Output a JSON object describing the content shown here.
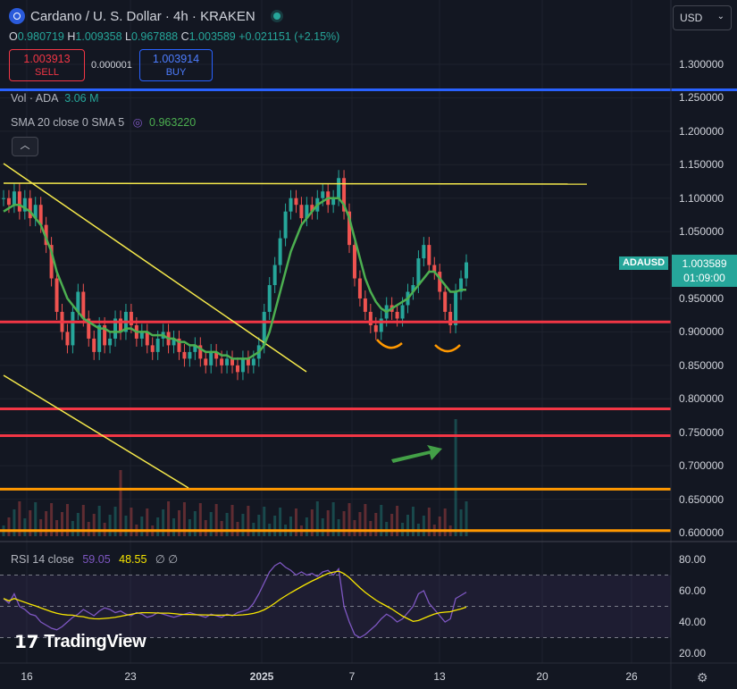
{
  "header": {
    "title": "Cardano / U. S. Dollar · 4h · KRAKEN",
    "ohlc": {
      "o_label": "O",
      "o": "0.980719",
      "h_label": "H",
      "h": "1.009358",
      "l_label": "L",
      "l": "0.967888",
      "c_label": "C",
      "c": "1.003589",
      "change": "+0.021151 (+2.15%)"
    },
    "sell_price": "1.003913",
    "sell_label": "SELL",
    "spread": "0.000001",
    "buy_price": "1.003914",
    "buy_label": "BUY",
    "currency": "USD"
  },
  "indicators": {
    "vol_label": "Vol · ADA",
    "vol_value": "3.06 M",
    "sma_label": "SMA 20 close 0 SMA 5",
    "sma_value": "0.963220",
    "rsi_label": "RSI 14 close",
    "rsi_value": "59.05",
    "rsi_ma": "48.55",
    "rsi_extra": "∅ ∅"
  },
  "price_axis": [
    "1.300000",
    "1.250000",
    "1.200000",
    "1.150000",
    "1.100000",
    "1.050000",
    "1.000000",
    "0.950000",
    "0.900000",
    "0.850000",
    "0.800000",
    "0.750000",
    "0.700000",
    "0.650000",
    "0.600000"
  ],
  "rsi_axis": [
    "80.00",
    "60.00",
    "40.00",
    "20.00"
  ],
  "time_axis": [
    {
      "label": "16",
      "bold": false
    },
    {
      "label": "23",
      "bold": false
    },
    {
      "label": "2025",
      "bold": true
    },
    {
      "label": "7",
      "bold": false
    },
    {
      "label": "13",
      "bold": false
    },
    {
      "label": "20",
      "bold": false
    },
    {
      "label": "26",
      "bold": false
    }
  ],
  "last_price": {
    "symbol": "ADAUSD",
    "price": "1.003589",
    "countdown": "01:09:00"
  },
  "branding": "TradingView",
  "colors": {
    "bg": "#131722",
    "up": "#26a69a",
    "down": "#ef5350",
    "sma": "#4caf50",
    "trend": "#f5e94b",
    "support": "#f23645",
    "orange": "#ff9800",
    "blue": "#2962ff",
    "rsi": "#7e57c2",
    "rsi_ma": "#f7e600"
  },
  "chart_data": {
    "type": "line",
    "title": "Cardano / U. S. Dollar · 4h · KRAKEN",
    "ylim": [
      0.58,
      1.36
    ],
    "x": [
      0,
      1,
      2,
      3,
      4,
      5,
      6,
      7,
      8,
      9,
      10,
      11,
      12,
      13,
      14,
      15,
      16,
      17,
      18,
      19,
      20,
      21,
      22,
      23,
      24,
      25,
      26,
      27,
      28,
      29,
      30,
      31,
      32,
      33,
      34,
      35,
      36,
      37,
      38,
      39,
      40,
      41,
      42,
      43,
      44,
      45,
      46,
      47,
      48,
      49,
      50,
      51,
      52,
      53,
      54,
      55,
      56,
      57,
      58,
      59,
      60,
      61,
      62,
      63,
      64,
      65,
      66,
      67,
      68,
      69,
      70,
      71,
      72,
      73,
      74,
      75,
      76,
      77,
      78,
      79,
      80,
      81,
      82,
      83,
      84,
      85,
      86,
      87
    ],
    "series": [
      {
        "name": "ADAUSD",
        "values": [
          1.1,
          1.09,
          1.11,
          1.08,
          1.1,
          1.07,
          1.09,
          1.06,
          1.03,
          0.98,
          0.93,
          0.9,
          0.88,
          0.93,
          0.96,
          0.92,
          0.89,
          0.87,
          0.91,
          0.88,
          0.89,
          0.92,
          0.9,
          0.93,
          0.91,
          0.89,
          0.9,
          0.88,
          0.87,
          0.89,
          0.9,
          0.88,
          0.89,
          0.87,
          0.86,
          0.87,
          0.88,
          0.86,
          0.85,
          0.87,
          0.86,
          0.85,
          0.86,
          0.85,
          0.84,
          0.86,
          0.85,
          0.86,
          0.88,
          0.93,
          0.97,
          1.0,
          1.04,
          1.08,
          1.1,
          1.09,
          1.07,
          1.09,
          1.08,
          1.1,
          1.11,
          1.09,
          1.1,
          1.13,
          1.08,
          1.03,
          0.98,
          0.95,
          0.93,
          0.91,
          0.9,
          0.92,
          0.94,
          0.93,
          0.92,
          0.94,
          0.96,
          0.97,
          1.01,
          1.03,
          1.0,
          0.99,
          0.96,
          0.93,
          0.91,
          0.96,
          0.98,
          1.004
        ]
      },
      {
        "name": "SMA 20",
        "values": [
          1.08,
          1.085,
          1.09,
          1.09,
          1.085,
          1.08,
          1.07,
          1.06,
          1.04,
          1.02,
          0.99,
          0.97,
          0.95,
          0.94,
          0.93,
          0.92,
          0.915,
          0.91,
          0.905,
          0.905,
          0.9,
          0.9,
          0.9,
          0.905,
          0.905,
          0.9,
          0.9,
          0.9,
          0.895,
          0.895,
          0.895,
          0.89,
          0.89,
          0.885,
          0.885,
          0.88,
          0.88,
          0.875,
          0.87,
          0.87,
          0.87,
          0.865,
          0.865,
          0.86,
          0.86,
          0.86,
          0.86,
          0.865,
          0.87,
          0.88,
          0.9,
          0.93,
          0.96,
          0.99,
          1.02,
          1.04,
          1.06,
          1.07,
          1.08,
          1.09,
          1.095,
          1.1,
          1.1,
          1.1,
          1.09,
          1.07,
          1.04,
          1.01,
          0.98,
          0.96,
          0.945,
          0.935,
          0.93,
          0.935,
          0.94,
          0.945,
          0.95,
          0.96,
          0.97,
          0.98,
          0.99,
          0.99,
          0.98,
          0.97,
          0.96,
          0.96,
          0.963,
          0.963
        ]
      }
    ],
    "rsi": {
      "name": "RSI 14",
      "values": [
        55,
        52,
        58,
        50,
        48,
        45,
        44,
        40,
        38,
        36,
        35,
        37,
        40,
        43,
        45,
        48,
        46,
        44,
        47,
        49,
        48,
        46,
        47,
        45,
        44,
        46,
        45,
        43,
        44,
        46,
        45,
        44,
        43,
        44,
        45,
        46,
        45,
        44,
        43,
        45,
        44,
        43,
        45,
        44,
        46,
        47,
        48,
        52,
        58,
        65,
        72,
        76,
        78,
        75,
        73,
        70,
        72,
        70,
        71,
        69,
        72,
        73,
        70,
        74,
        50,
        40,
        32,
        30,
        32,
        35,
        38,
        42,
        45,
        43,
        40,
        42,
        46,
        50,
        58,
        60,
        52,
        48,
        44,
        40,
        42,
        55,
        57,
        59.05
      ]
    },
    "levels": [
      {
        "name": "support",
        "price": 0.915,
        "color": "#f23645"
      },
      {
        "name": "support",
        "price": 0.785,
        "color": "#f23645"
      },
      {
        "name": "support",
        "price": 0.745,
        "color": "#f23645"
      },
      {
        "name": "support",
        "price": 0.665,
        "color": "#ff9800"
      },
      {
        "name": "support",
        "price": 0.603,
        "color": "#ff9800"
      },
      {
        "name": "resistance",
        "price": 1.262,
        "color": "#2962ff"
      }
    ]
  }
}
